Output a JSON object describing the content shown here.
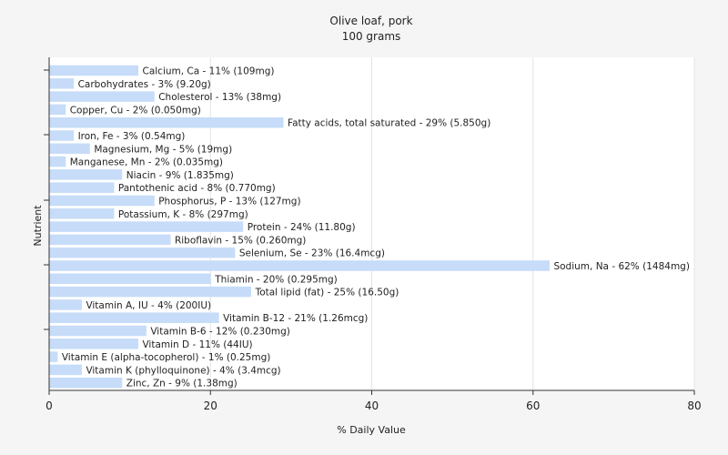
{
  "chart_data": {
    "type": "bar",
    "orientation": "horizontal",
    "title": "Olive loaf, pork",
    "subtitle": "100 grams",
    "xlabel": "% Daily Value",
    "ylabel": "Nutrient",
    "xlim": [
      0,
      80
    ],
    "xticks": [
      0,
      20,
      40,
      60,
      80
    ],
    "grid": true,
    "bar_color": "#c6dcf8",
    "categories": [
      "Calcium, Ca",
      "Carbohydrates",
      "Cholesterol",
      "Copper, Cu",
      "Fatty acids, total saturated",
      "Iron, Fe",
      "Magnesium, Mg",
      "Manganese, Mn",
      "Niacin",
      "Pantothenic acid",
      "Phosphorus, P",
      "Potassium, K",
      "Protein",
      "Riboflavin",
      "Selenium, Se",
      "Sodium, Na",
      "Thiamin",
      "Total lipid (fat)",
      "Vitamin A, IU",
      "Vitamin B-12",
      "Vitamin B-6",
      "Vitamin D",
      "Vitamin E (alpha-tocopherol)",
      "Vitamin K (phylloquinone)",
      "Zinc, Zn"
    ],
    "values": [
      11,
      3,
      13,
      2,
      29,
      3,
      5,
      2,
      9,
      8,
      13,
      8,
      24,
      15,
      23,
      62,
      20,
      25,
      4,
      21,
      12,
      11,
      1,
      4,
      9
    ],
    "labels": [
      "Calcium, Ca - 11% (109mg)",
      "Carbohydrates - 3% (9.20g)",
      "Cholesterol - 13% (38mg)",
      "Copper, Cu - 2% (0.050mg)",
      "Fatty acids, total saturated - 29% (5.850g)",
      "Iron, Fe - 3% (0.54mg)",
      "Magnesium, Mg - 5% (19mg)",
      "Manganese, Mn - 2% (0.035mg)",
      "Niacin - 9% (1.835mg)",
      "Pantothenic acid - 8% (0.770mg)",
      "Phosphorus, P - 13% (127mg)",
      "Potassium, K - 8% (297mg)",
      "Protein - 24% (11.80g)",
      "Riboflavin - 15% (0.260mg)",
      "Selenium, Se - 23% (16.4mcg)",
      "Sodium, Na - 62% (1484mg)",
      "Thiamin - 20% (0.295mg)",
      "Total lipid (fat) - 25% (16.50g)",
      "Vitamin A, IU - 4% (200IU)",
      "Vitamin B-12 - 21% (1.26mcg)",
      "Vitamin B-6 - 12% (0.230mg)",
      "Vitamin D - 11% (44IU)",
      "Vitamin E (alpha-tocopherol) - 1% (0.25mg)",
      "Vitamin K (phylloquinone) - 4% (3.4mcg)",
      "Zinc, Zn - 9% (1.38mg)"
    ]
  }
}
